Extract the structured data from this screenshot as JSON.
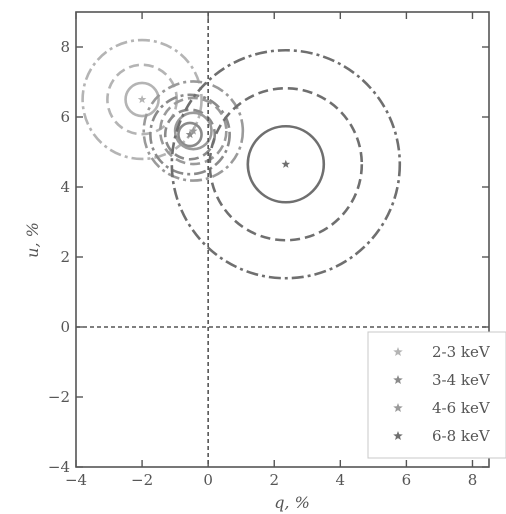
{
  "chart_data": {
    "type": "scatter",
    "xlabel": "q, %",
    "ylabel": "u, %",
    "xlim": [
      -4,
      8.5
    ],
    "ylim": [
      -4,
      9
    ],
    "x_ticks": [
      "−4",
      "−2",
      "0",
      "2",
      "4",
      "6",
      "8"
    ],
    "y_ticks": [
      "−4",
      "−2",
      "0",
      "2",
      "4",
      "6",
      "8"
    ],
    "reference_lines": {
      "x": 0,
      "y": 0,
      "style": "dashed"
    },
    "contour_levels": [
      "solid",
      "dashed",
      "dash-dot"
    ],
    "legend": {
      "position": "bottom-right"
    },
    "series": [
      {
        "name": "2-3 keV",
        "color": "#b4b4b4",
        "center": {
          "q": -2.0,
          "u": 6.5
        },
        "contour_radii": [
          0.5,
          1.05,
          1.8
        ]
      },
      {
        "name": "3-4 keV",
        "color": "#8a8a8a",
        "center": {
          "q": -0.55,
          "u": 5.5
        },
        "contour_radii": [
          0.35,
          0.75,
          1.2
        ]
      },
      {
        "name": "4-6 keV",
        "color": "#9a9a9a",
        "center": {
          "q": -0.45,
          "u": 5.6
        },
        "contour_radii": [
          0.55,
          1.0,
          1.5
        ]
      },
      {
        "name": "6-8 keV",
        "color": "#6f6f6f",
        "center": {
          "q": 2.35,
          "u": 4.65
        },
        "contour_radii": [
          1.15,
          2.3,
          3.45
        ]
      }
    ]
  }
}
